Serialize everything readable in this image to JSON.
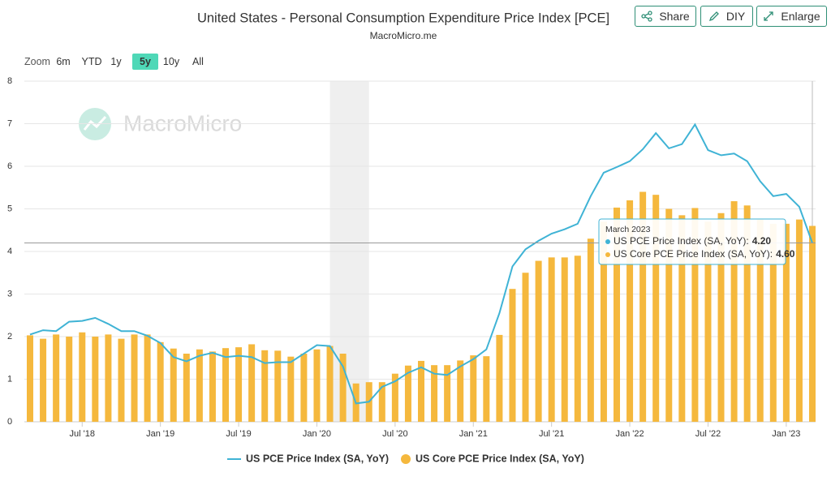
{
  "toolbar": {
    "share": "Share",
    "diy": "DIY",
    "enlarge": "Enlarge"
  },
  "zoom": {
    "label": "Zoom",
    "options": [
      "6m",
      "YTD",
      "1y",
      "5y",
      "10y",
      "All"
    ],
    "active": "5y"
  },
  "watermark": "MacroMicro",
  "chart_data": {
    "type": "bar_line",
    "title": "United States - Personal Consumption Expenditure Price Index [PCE]",
    "subtitle": "MacroMicro.me",
    "x": [
      "2018-03",
      "2018-04",
      "2018-05",
      "2018-06",
      "2018-07",
      "2018-08",
      "2018-09",
      "2018-10",
      "2018-11",
      "2018-12",
      "2019-01",
      "2019-02",
      "2019-03",
      "2019-04",
      "2019-05",
      "2019-06",
      "2019-07",
      "2019-08",
      "2019-09",
      "2019-10",
      "2019-11",
      "2019-12",
      "2020-01",
      "2020-02",
      "2020-03",
      "2020-04",
      "2020-05",
      "2020-06",
      "2020-07",
      "2020-08",
      "2020-09",
      "2020-10",
      "2020-11",
      "2020-12",
      "2021-01",
      "2021-02",
      "2021-03",
      "2021-04",
      "2021-05",
      "2021-06",
      "2021-07",
      "2021-08",
      "2021-09",
      "2021-10",
      "2021-11",
      "2021-12",
      "2022-01",
      "2022-02",
      "2022-03",
      "2022-04",
      "2022-05",
      "2022-06",
      "2022-07",
      "2022-08",
      "2022-09",
      "2022-10",
      "2022-11",
      "2022-12",
      "2023-01",
      "2023-02",
      "2023-03"
    ],
    "xticks": [
      {
        "value": "2018-07",
        "label": "Jul '18"
      },
      {
        "value": "2019-01",
        "label": "Jan '19"
      },
      {
        "value": "2019-07",
        "label": "Jul '19"
      },
      {
        "value": "2020-01",
        "label": "Jan '20"
      },
      {
        "value": "2020-07",
        "label": "Jul '20"
      },
      {
        "value": "2021-01",
        "label": "Jan '21"
      },
      {
        "value": "2021-07",
        "label": "Jul '21"
      },
      {
        "value": "2022-01",
        "label": "Jan '22"
      },
      {
        "value": "2022-07",
        "label": "Jul '22"
      },
      {
        "value": "2023-01",
        "label": "Jan '23"
      }
    ],
    "ylim": [
      0,
      8
    ],
    "yticks": [
      0,
      1,
      2,
      3,
      4,
      5,
      6,
      7,
      8
    ],
    "grid": true,
    "shaded_regions": [
      {
        "from": "2020-02",
        "to": "2020-05"
      }
    ],
    "series": [
      {
        "name": "US PCE Price Index (SA, YoY)",
        "kind": "line",
        "color": "#3fb3d5",
        "values": [
          2.05,
          2.15,
          2.13,
          2.35,
          2.37,
          2.44,
          2.3,
          2.13,
          2.13,
          2.02,
          1.85,
          1.52,
          1.42,
          1.55,
          1.62,
          1.52,
          1.55,
          1.52,
          1.38,
          1.4,
          1.4,
          1.6,
          1.8,
          1.78,
          1.3,
          0.43,
          0.47,
          0.82,
          0.95,
          1.15,
          1.28,
          1.13,
          1.1,
          1.3,
          1.47,
          1.7,
          2.55,
          3.65,
          4.05,
          4.25,
          4.42,
          4.52,
          4.65,
          5.3,
          5.85,
          5.98,
          6.12,
          6.4,
          6.78,
          6.42,
          6.52,
          6.98,
          6.38,
          6.26,
          6.3,
          6.12,
          5.65,
          5.3,
          5.35,
          5.05,
          4.2
        ]
      },
      {
        "name": "US Core PCE Price Index (SA, YoY)",
        "kind": "bar",
        "color": "#f5b83d",
        "values": [
          2.03,
          1.95,
          2.05,
          2.0,
          2.1,
          2.0,
          2.05,
          1.95,
          2.05,
          2.05,
          1.87,
          1.72,
          1.6,
          1.7,
          1.65,
          1.73,
          1.75,
          1.82,
          1.68,
          1.67,
          1.53,
          1.6,
          1.7,
          1.78,
          1.6,
          0.9,
          0.93,
          0.93,
          1.13,
          1.32,
          1.43,
          1.33,
          1.33,
          1.44,
          1.56,
          1.54,
          2.04,
          3.12,
          3.5,
          3.78,
          3.86,
          3.86,
          3.9,
          4.3,
          4.7,
          5.03,
          5.2,
          5.4,
          5.33,
          5.0,
          4.85,
          5.02,
          4.7,
          4.9,
          5.18,
          5.08,
          4.75,
          4.65,
          4.65,
          4.75,
          4.6
        ]
      }
    ],
    "tooltip": {
      "title": "March 2023",
      "value_labels": [
        "4.20",
        "4.60"
      ]
    }
  }
}
